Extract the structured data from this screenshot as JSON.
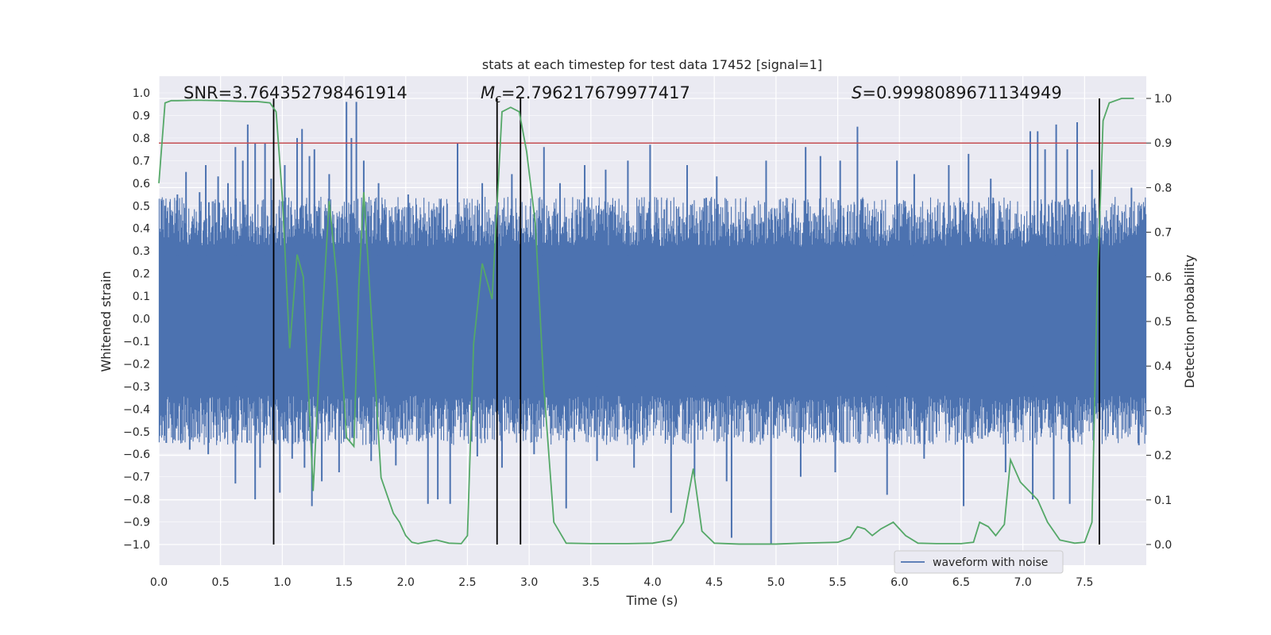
{
  "chart_data": {
    "type": "line",
    "title": "stats at each timestep for test data 17452 [signal=1]",
    "xlabel": "Time (s)",
    "ylabel": "Whitened strain",
    "y2label": "Detection probability",
    "xlim": [
      0.0,
      8.0
    ],
    "ylim": [
      -1.0,
      1.0
    ],
    "y2lim": [
      0.0,
      1.0
    ],
    "x_ticks": [
      0.0,
      0.5,
      1.0,
      1.5,
      2.0,
      2.5,
      3.0,
      3.5,
      4.0,
      4.5,
      5.0,
      5.5,
      6.0,
      6.5,
      7.0,
      7.5
    ],
    "x_tick_labels": [
      "0.0",
      "0.5",
      "1.0",
      "1.5",
      "2.0",
      "2.5",
      "3.0",
      "3.5",
      "4.0",
      "4.5",
      "5.0",
      "5.5",
      "6.0",
      "6.5",
      "7.0",
      "7.5"
    ],
    "y_ticks": [
      -1.0,
      -0.9,
      -0.8,
      -0.7,
      -0.6,
      -0.5,
      -0.4,
      -0.3,
      -0.2,
      -0.1,
      0.0,
      0.1,
      0.2,
      0.3,
      0.4,
      0.5,
      0.6,
      0.7,
      0.8,
      0.9,
      1.0
    ],
    "y_tick_labels": [
      "−1.0",
      "−0.9",
      "−0.8",
      "−0.7",
      "−0.6",
      "−0.5",
      "−0.4",
      "−0.3",
      "−0.2",
      "−0.1",
      "0.0",
      "0.1",
      "0.2",
      "0.3",
      "0.4",
      "0.5",
      "0.6",
      "0.7",
      "0.8",
      "0.9",
      "1.0"
    ],
    "y2_ticks": [
      0.0,
      0.1,
      0.2,
      0.3,
      0.4,
      0.5,
      0.6,
      0.7,
      0.8,
      0.9,
      1.0
    ],
    "y2_tick_labels": [
      "0.0",
      "0.1",
      "0.2",
      "0.3",
      "0.4",
      "0.5",
      "0.6",
      "0.7",
      "0.8",
      "0.9",
      "1.0"
    ],
    "annotations": {
      "snr": "SNR=3.764352798461914",
      "mc_symbol": "M",
      "mc_sub": "c",
      "mc_value": "=2.796217679977417",
      "s_symbol": "S",
      "s_value": "=0.9998089671134949"
    },
    "legend": {
      "label": "waveform with noise",
      "placement": "lower-right"
    },
    "threshold": {
      "axis": "y2",
      "value": 0.9,
      "color": "#c44e52"
    },
    "vertical_markers": [
      0.93,
      2.74,
      2.93,
      7.62
    ],
    "waveform": {
      "name": "waveform with noise",
      "color": "#4c72b0",
      "samples": 1600,
      "band_low": -0.42,
      "band_high": 0.4,
      "spikes": [
        {
          "x": 0.05,
          "y": 0.5
        },
        {
          "x": 0.15,
          "y": 0.55
        },
        {
          "x": 0.22,
          "y": 0.65
        },
        {
          "x": 0.33,
          "y": 0.56
        },
        {
          "x": 0.38,
          "y": 0.68
        },
        {
          "x": 0.48,
          "y": 0.63
        },
        {
          "x": 0.56,
          "y": 0.6
        },
        {
          "x": 0.62,
          "y": 0.76
        },
        {
          "x": 0.68,
          "y": 0.7
        },
        {
          "x": 0.72,
          "y": 0.86
        },
        {
          "x": 0.78,
          "y": 0.78
        },
        {
          "x": 0.86,
          "y": 0.78
        },
        {
          "x": 0.91,
          "y": 0.62
        },
        {
          "x": 1.02,
          "y": 0.68
        },
        {
          "x": 1.12,
          "y": 0.8
        },
        {
          "x": 1.16,
          "y": 0.84
        },
        {
          "x": 1.22,
          "y": 0.72
        },
        {
          "x": 1.26,
          "y": 0.75
        },
        {
          "x": 1.38,
          "y": 0.64
        },
        {
          "x": 1.52,
          "y": 0.96
        },
        {
          "x": 1.56,
          "y": 0.8
        },
        {
          "x": 1.6,
          "y": 0.96
        },
        {
          "x": 1.66,
          "y": 0.7
        },
        {
          "x": 1.78,
          "y": 0.6
        },
        {
          "x": 2.02,
          "y": 0.55
        },
        {
          "x": 2.42,
          "y": 0.78
        },
        {
          "x": 2.62,
          "y": 0.6
        },
        {
          "x": 2.86,
          "y": 0.64
        },
        {
          "x": 3.12,
          "y": 0.76
        },
        {
          "x": 3.25,
          "y": 0.6
        },
        {
          "x": 3.45,
          "y": 0.68
        },
        {
          "x": 3.62,
          "y": 0.66
        },
        {
          "x": 3.8,
          "y": 0.7
        },
        {
          "x": 3.98,
          "y": 0.77
        },
        {
          "x": 4.28,
          "y": 0.68
        },
        {
          "x": 4.52,
          "y": 0.63
        },
        {
          "x": 4.92,
          "y": 0.7
        },
        {
          "x": 5.24,
          "y": 0.76
        },
        {
          "x": 5.36,
          "y": 0.72
        },
        {
          "x": 5.52,
          "y": 0.7
        },
        {
          "x": 5.66,
          "y": 0.85
        },
        {
          "x": 5.98,
          "y": 0.7
        },
        {
          "x": 6.12,
          "y": 0.64
        },
        {
          "x": 6.4,
          "y": 0.68
        },
        {
          "x": 6.56,
          "y": 0.73
        },
        {
          "x": 6.74,
          "y": 0.62
        },
        {
          "x": 7.06,
          "y": 0.83
        },
        {
          "x": 7.12,
          "y": 0.83
        },
        {
          "x": 7.18,
          "y": 0.75
        },
        {
          "x": 7.27,
          "y": 0.86
        },
        {
          "x": 7.36,
          "y": 0.75
        },
        {
          "x": 7.44,
          "y": 0.87
        },
        {
          "x": 7.56,
          "y": 0.66
        },
        {
          "x": 7.88,
          "y": 0.58
        },
        {
          "x": 0.06,
          "y": -0.55
        },
        {
          "x": 0.25,
          "y": -0.58
        },
        {
          "x": 0.4,
          "y": -0.6
        },
        {
          "x": 0.62,
          "y": -0.73
        },
        {
          "x": 0.78,
          "y": -0.8
        },
        {
          "x": 0.82,
          "y": -0.66
        },
        {
          "x": 0.98,
          "y": -0.77
        },
        {
          "x": 1.08,
          "y": -0.62
        },
        {
          "x": 1.18,
          "y": -0.66
        },
        {
          "x": 1.24,
          "y": -0.83
        },
        {
          "x": 1.32,
          "y": -0.72
        },
        {
          "x": 1.46,
          "y": -0.68
        },
        {
          "x": 1.72,
          "y": -0.63
        },
        {
          "x": 1.92,
          "y": -0.65
        },
        {
          "x": 2.18,
          "y": -0.82
        },
        {
          "x": 2.26,
          "y": -0.8
        },
        {
          "x": 2.36,
          "y": -0.82
        },
        {
          "x": 2.58,
          "y": -0.61
        },
        {
          "x": 2.78,
          "y": -0.66
        },
        {
          "x": 3.04,
          "y": -0.6
        },
        {
          "x": 3.3,
          "y": -0.84
        },
        {
          "x": 3.55,
          "y": -0.63
        },
        {
          "x": 3.85,
          "y": -0.66
        },
        {
          "x": 4.15,
          "y": -0.86
        },
        {
          "x": 4.34,
          "y": -0.7
        },
        {
          "x": 4.6,
          "y": -0.72
        },
        {
          "x": 4.64,
          "y": -0.97
        },
        {
          "x": 4.96,
          "y": -1.0
        },
        {
          "x": 5.2,
          "y": -0.7
        },
        {
          "x": 5.48,
          "y": -0.68
        },
        {
          "x": 5.9,
          "y": -0.78
        },
        {
          "x": 6.2,
          "y": -0.62
        },
        {
          "x": 6.52,
          "y": -0.83
        },
        {
          "x": 6.86,
          "y": -0.68
        },
        {
          "x": 7.08,
          "y": -0.8
        },
        {
          "x": 7.25,
          "y": -0.8
        },
        {
          "x": 7.38,
          "y": -0.82
        },
        {
          "x": 7.62,
          "y": -0.75
        },
        {
          "x": 7.94,
          "y": -0.56
        }
      ]
    },
    "probability": {
      "name": "detection probability",
      "color": "#55a868",
      "x": [
        0.0,
        0.05,
        0.1,
        0.15,
        0.3,
        0.5,
        0.7,
        0.8,
        0.9,
        0.95,
        1.0,
        1.06,
        1.12,
        1.17,
        1.25,
        1.3,
        1.38,
        1.44,
        1.52,
        1.58,
        1.62,
        1.66,
        1.72,
        1.8,
        1.9,
        1.95,
        2.0,
        2.05,
        2.1,
        2.15,
        2.25,
        2.35,
        2.45,
        2.5,
        2.55,
        2.62,
        2.7,
        2.78,
        2.85,
        2.92,
        2.98,
        3.05,
        3.12,
        3.2,
        3.3,
        3.5,
        3.8,
        4.0,
        4.15,
        4.25,
        4.33,
        4.4,
        4.5,
        4.7,
        5.0,
        5.2,
        5.5,
        5.6,
        5.66,
        5.72,
        5.78,
        5.85,
        5.95,
        6.05,
        6.15,
        6.3,
        6.5,
        6.6,
        6.65,
        6.72,
        6.78,
        6.85,
        6.9,
        6.98,
        7.05,
        7.12,
        7.2,
        7.3,
        7.42,
        7.5,
        7.56,
        7.6,
        7.65,
        7.7,
        7.8,
        7.9
      ],
      "y": [
        0.81,
        0.99,
        0.995,
        0.995,
        0.996,
        0.995,
        0.993,
        0.993,
        0.99,
        0.97,
        0.78,
        0.44,
        0.65,
        0.6,
        0.12,
        0.4,
        0.77,
        0.6,
        0.24,
        0.22,
        0.58,
        0.79,
        0.52,
        0.15,
        0.07,
        0.05,
        0.02,
        0.005,
        0.002,
        0.005,
        0.01,
        0.003,
        0.002,
        0.02,
        0.45,
        0.63,
        0.55,
        0.97,
        0.98,
        0.97,
        0.88,
        0.72,
        0.35,
        0.05,
        0.003,
        0.002,
        0.002,
        0.003,
        0.01,
        0.05,
        0.17,
        0.03,
        0.003,
        0.001,
        0.001,
        0.003,
        0.005,
        0.015,
        0.04,
        0.035,
        0.02,
        0.035,
        0.05,
        0.02,
        0.003,
        0.002,
        0.002,
        0.005,
        0.05,
        0.04,
        0.02,
        0.045,
        0.19,
        0.14,
        0.12,
        0.1,
        0.05,
        0.01,
        0.003,
        0.005,
        0.05,
        0.55,
        0.95,
        0.99,
        1.0,
        1.0
      ]
    }
  }
}
